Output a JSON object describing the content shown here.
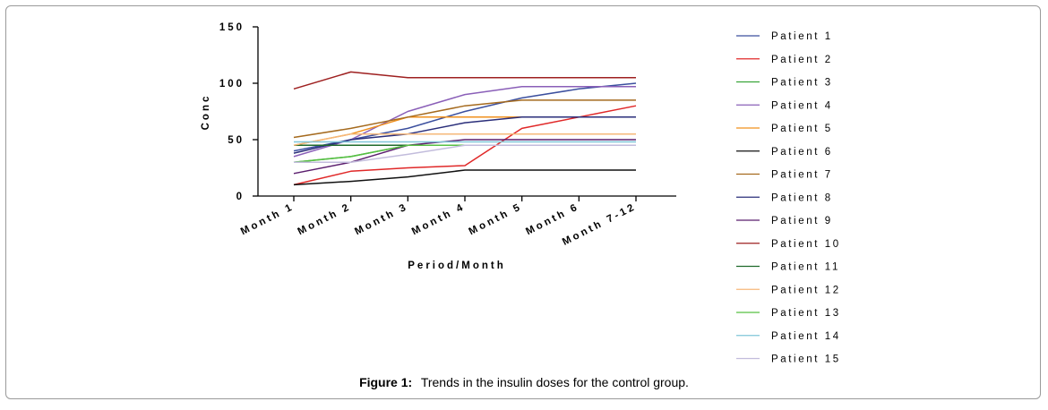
{
  "chart_data": {
    "type": "line",
    "title": "",
    "xlabel": "Period/Month",
    "ylabel": "Conc",
    "ylim": [
      0,
      150
    ],
    "yticks": [
      0,
      50,
      100,
      150
    ],
    "categories": [
      "Month 1",
      "Month 2",
      "Month 3",
      "Month 4",
      "Month 5",
      "Month 6",
      "Month 7-12"
    ],
    "legend_position": "right",
    "series": [
      {
        "name": "Patient 1",
        "color": "#3b4f9e",
        "values": [
          40,
          50,
          60,
          75,
          87,
          95,
          100
        ]
      },
      {
        "name": "Patient 2",
        "color": "#e02828",
        "values": [
          10,
          22,
          25,
          27,
          60,
          70,
          80
        ]
      },
      {
        "name": "Patient 3",
        "color": "#3aa43a",
        "values": [
          30,
          35,
          45,
          45,
          45,
          45,
          45
        ]
      },
      {
        "name": "Patient 4",
        "color": "#8a5fb8",
        "values": [
          35,
          50,
          75,
          90,
          97,
          97,
          97
        ]
      },
      {
        "name": "Patient 5",
        "color": "#f0901c",
        "values": [
          45,
          55,
          70,
          70,
          70,
          70,
          70
        ]
      },
      {
        "name": "Patient 6",
        "color": "#111111",
        "values": [
          10,
          13,
          17,
          23,
          23,
          23,
          23
        ]
      },
      {
        "name": "Patient 7",
        "color": "#a56a1e",
        "values": [
          52,
          60,
          70,
          80,
          85,
          85,
          85
        ]
      },
      {
        "name": "Patient 8",
        "color": "#2a2e7a",
        "values": [
          38,
          50,
          55,
          65,
          70,
          70,
          70
        ]
      },
      {
        "name": "Patient 9",
        "color": "#5b1e6e",
        "values": [
          20,
          30,
          45,
          50,
          50,
          50,
          50
        ]
      },
      {
        "name": "Patient 10",
        "color": "#9e2020",
        "values": [
          95,
          110,
          105,
          105,
          105,
          105,
          105
        ]
      },
      {
        "name": "Patient 11",
        "color": "#1f6a2a",
        "values": [
          45,
          45,
          45,
          45,
          45,
          45,
          45
        ]
      },
      {
        "name": "Patient 12",
        "color": "#f6b87a",
        "values": [
          45,
          55,
          55,
          55,
          55,
          55,
          55
        ]
      },
      {
        "name": "Patient 13",
        "color": "#56c042",
        "values": [
          30,
          35,
          45,
          45,
          45,
          45,
          45
        ]
      },
      {
        "name": "Patient 14",
        "color": "#7fc6d8",
        "values": [
          48,
          48,
          48,
          48,
          48,
          48,
          48
        ]
      },
      {
        "name": "Patient 15",
        "color": "#c2bcdc",
        "values": [
          30,
          30,
          37,
          45,
          45,
          45,
          45
        ]
      }
    ]
  },
  "caption": {
    "label": "Figure 1:",
    "text": "Trends in the insulin doses for the control group."
  }
}
